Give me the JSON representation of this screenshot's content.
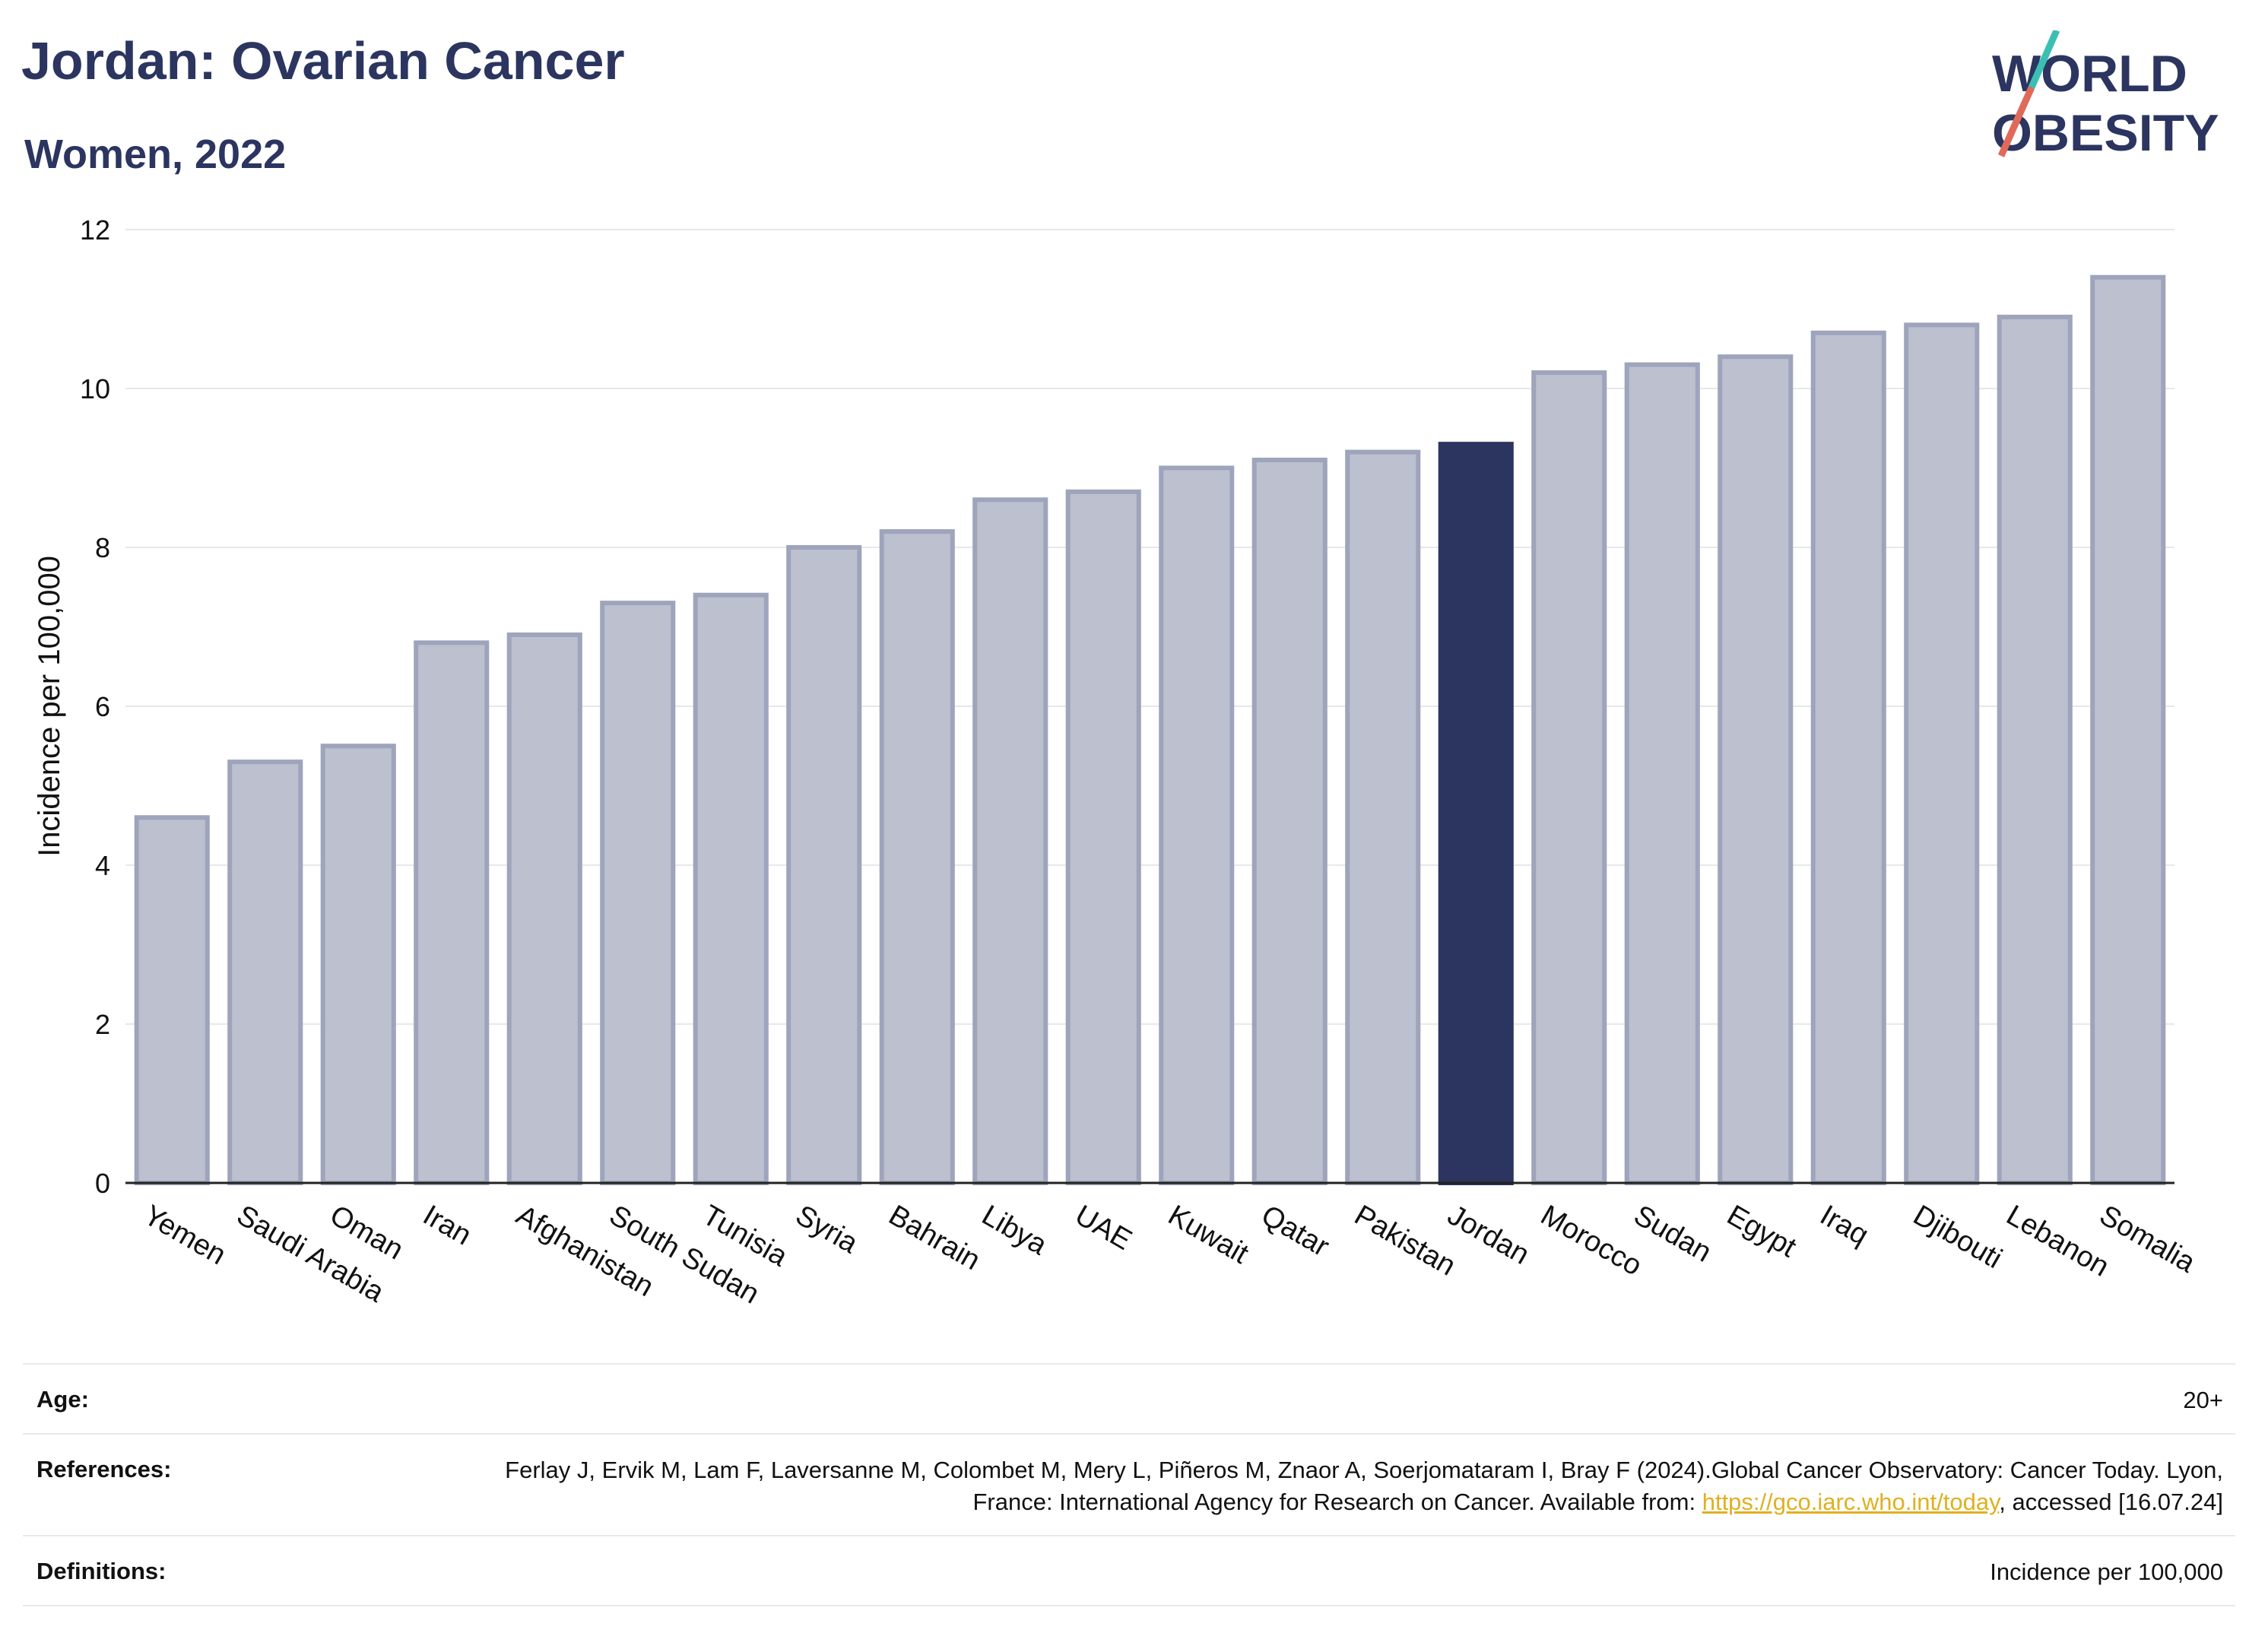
{
  "header": {
    "title": "Jordan: Ovarian Cancer",
    "subtitle": "Women, 2022"
  },
  "logo": {
    "line1": "WORLD",
    "line2": "OBESITY"
  },
  "chart_data": {
    "type": "bar",
    "categories": [
      "Yemen",
      "Saudi Arabia",
      "Oman",
      "Iran",
      "Afghanistan",
      "South Sudan",
      "Tunisia",
      "Syria",
      "Bahrain",
      "Libya",
      "UAE",
      "Kuwait",
      "Qatar",
      "Pakistan",
      "Jordan",
      "Morocco",
      "Sudan",
      "Egypt",
      "Iraq",
      "Djibouti",
      "Lebanon",
      "Somalia"
    ],
    "values": [
      4.6,
      5.3,
      5.5,
      6.8,
      6.9,
      7.3,
      7.4,
      8.0,
      8.2,
      8.6,
      8.7,
      9.0,
      9.1,
      9.2,
      9.3,
      10.2,
      10.3,
      10.4,
      10.7,
      10.8,
      10.9,
      11.4
    ],
    "highlight": "Jordan",
    "ylabel": "Incidence per 100,000",
    "xlabel": "",
    "ylim": [
      0,
      12
    ],
    "yticks": [
      0,
      2,
      4,
      6,
      8,
      10,
      12
    ],
    "grid": true,
    "colors": {
      "bar": "#bcc0cf",
      "bar_edge": "#9ea4bb",
      "highlight": "#2b3560"
    }
  },
  "meta": {
    "age_label": "Age:",
    "age_value": "20+",
    "references_label": "References:",
    "references_text": "Ferlay J, Ervik M, Lam F, Laversanne M, Colombet M, Mery L, Piñeros M, Znaor A, Soerjomataram I, Bray F (2024).Global Cancer Observatory: Cancer Today. Lyon, France: International Agency for Research on Cancer. Available from:",
    "references_link": "https://gco.iarc.who.int/today",
    "references_tail": ", accessed [16.07.24]",
    "definitions_label": "Definitions:",
    "definitions_value": "Incidence per 100,000"
  }
}
